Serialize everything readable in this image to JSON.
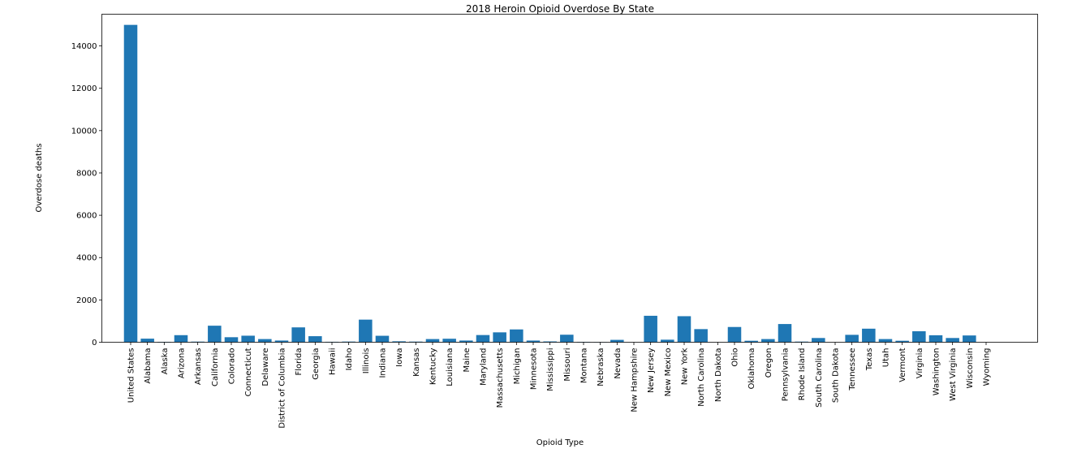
{
  "chart_data": {
    "type": "bar",
    "title": "2018 Heroin Opioid Overdose By State",
    "xlabel": "Opioid Type",
    "ylabel": "Overdose deaths",
    "ylim": [
      0,
      15500
    ],
    "yticks": [
      0,
      2000,
      4000,
      6000,
      8000,
      10000,
      12000,
      14000
    ],
    "grid": false,
    "bar_color": "#1f77b4",
    "categories": [
      "United States",
      "Alabama",
      "Alaska",
      "Arizona",
      "Arkansas",
      "California",
      "Colorado",
      "Connecticut",
      "Delaware",
      "District of Columbia",
      "Florida",
      "Georgia",
      "Hawaii",
      "Idaho",
      "Illinois",
      "Indiana",
      "Iowa",
      "Kansas",
      "Kentucky",
      "Louisiana",
      "Maine",
      "Maryland",
      "Massachusetts",
      "Michigan",
      "Minnesota",
      "Mississippi",
      "Missouri",
      "Montana",
      "Nebraska",
      "Nevada",
      "New Hampshire",
      "New Jersey",
      "New Mexico",
      "New York",
      "North Carolina",
      "North Dakota",
      "Ohio",
      "Oklahoma",
      "Oregon",
      "Pennsylvania",
      "Rhode Island",
      "South Carolina",
      "South Dakota",
      "Tennessee",
      "Texas",
      "Utah",
      "Vermont",
      "Virginia",
      "Washington",
      "West Virginia",
      "Wisconsin",
      "Wyoming"
    ],
    "values": [
      14996,
      169,
      20,
      334,
      29,
      781,
      237,
      309,
      150,
      80,
      702,
      286,
      22,
      31,
      1068,
      305,
      44,
      30,
      150,
      165,
      80,
      340,
      467,
      605,
      79,
      38,
      355,
      20,
      10,
      112,
      0,
      1250,
      120,
      1230,
      620,
      0,
      720,
      70,
      150,
      860,
      30,
      200,
      0,
      350,
      640,
      150,
      70,
      520,
      330,
      200,
      320,
      0
    ]
  }
}
